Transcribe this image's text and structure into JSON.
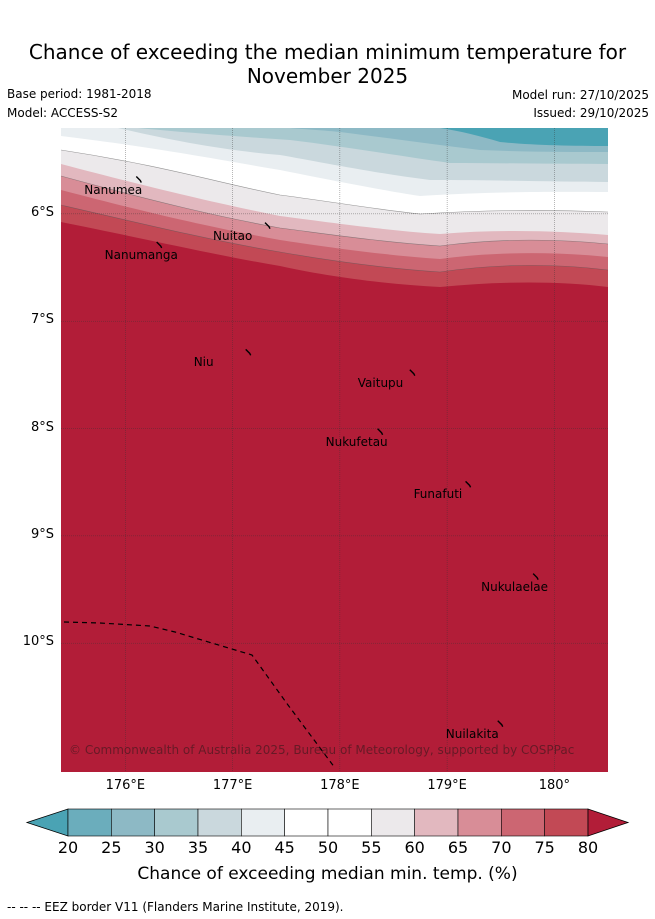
{
  "title": {
    "line1": "Chance of exceeding the median minimum temperature for",
    "line2": "November 2025"
  },
  "meta": {
    "base_period": "Base period: 1981-2018",
    "model": "Model: ACCESS-S2",
    "model_run": "Model run: 27/10/2025",
    "issued": "Issued: 29/10/2025"
  },
  "axes": {
    "lat_ticks": [
      {
        "value": -6,
        "label": "6°S"
      },
      {
        "value": -7,
        "label": "7°S"
      },
      {
        "value": -8,
        "label": "8°S"
      },
      {
        "value": -9,
        "label": "9°S"
      },
      {
        "value": -10,
        "label": "10°S"
      }
    ],
    "lon_ticks": [
      {
        "value": 176,
        "label": "176°E"
      },
      {
        "value": 177,
        "label": "177°E"
      },
      {
        "value": 178,
        "label": "178°E"
      },
      {
        "value": 179,
        "label": "179°E"
      },
      {
        "value": 180,
        "label": "180°"
      }
    ],
    "lon_range": [
      175.4,
      180.5
    ],
    "lat_range": [
      -11.2,
      -5.2
    ]
  },
  "islands": [
    {
      "name": "Nanumea",
      "lon": 176.13,
      "lat": -5.68
    },
    {
      "name": "Nuitao",
      "lon": 177.33,
      "lat": -6.11
    },
    {
      "name": "Nanumanga",
      "lon": 176.32,
      "lat": -6.29
    },
    {
      "name": "Niu",
      "lon": 177.15,
      "lat": -7.29
    },
    {
      "name": "Vaitupu",
      "lon": 178.68,
      "lat": -7.48
    },
    {
      "name": "Nukufetau",
      "lon": 178.38,
      "lat": -8.03
    },
    {
      "name": "Funafuti",
      "lon": 179.2,
      "lat": -8.52
    },
    {
      "name": "Nukulaelae",
      "lon": 179.83,
      "lat": -9.38
    },
    {
      "name": "Nuilakita",
      "lon": 179.5,
      "lat": -10.75
    }
  ],
  "copyright": "© Commonwealth of Australia 2025, Bureau of Meteorology, supported by COSPPac",
  "colorbar": {
    "ticks": [
      "20",
      "25",
      "30",
      "35",
      "40",
      "45",
      "50",
      "55",
      "60",
      "65",
      "70",
      "75",
      "80"
    ],
    "colors": [
      "#4aa3b4",
      "#6badbc",
      "#8db9c5",
      "#a9c9cf",
      "#cad8dd",
      "#e9eef1",
      "#ffffff",
      "#ffffff",
      "#ece9eb",
      "#e2b8bf",
      "#d88d97",
      "#cc6672",
      "#c24955",
      "#b21d38"
    ],
    "label": "Chance of exceeding median min. temp. (%)"
  },
  "legend": "-- -- -- EEZ border V11 (Flanders Marine Institute, 2019)."
}
